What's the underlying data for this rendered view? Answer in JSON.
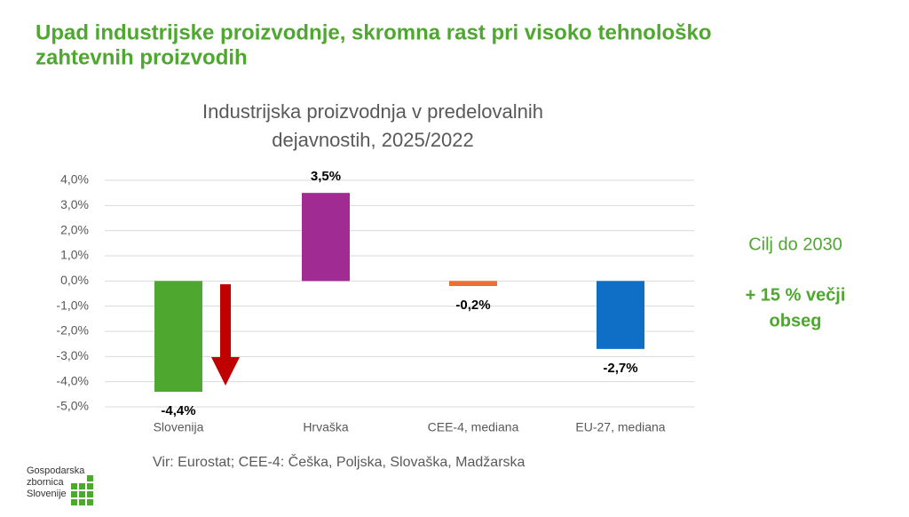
{
  "slide": {
    "title": [
      "Upad industrijske proizvodnje, skromna rast pri visoko tehnološko",
      "zahtevnih proizvodih"
    ],
    "goal": {
      "heading": "Cilj do 2030",
      "text": [
        "+ 15 % večji",
        "obseg"
      ]
    },
    "source": "Vir: Eurostat; CEE-4: Češka,  Poljska, Slovaška, Madžarska",
    "logo": [
      "Gospodarska",
      "zbornica",
      "Slovenije"
    ]
  },
  "chart_data": {
    "type": "bar",
    "title": [
      "Industrijska proizvodnja v predelovalnih",
      "dejavnostih, 2025/2022"
    ],
    "categories": [
      "Slovenija",
      "Hrvaška",
      "CEE-4, mediana",
      "EU-27, mediana"
    ],
    "values": [
      -4.4,
      3.5,
      -0.2,
      -2.7
    ],
    "value_labels": [
      "-4,4%",
      "3,5%",
      "-0,2%",
      "-2,7%"
    ],
    "colors": [
      "#4ea72e",
      "#a02b93",
      "#e97132",
      "#0f6fc6"
    ],
    "ylim": [
      -5,
      4
    ],
    "yticks": [
      {
        "value": -5,
        "label": "-5,0%"
      },
      {
        "value": -4,
        "label": "-4,0%"
      },
      {
        "value": -3,
        "label": "-3,0%"
      },
      {
        "value": -2,
        "label": "-2,0%"
      },
      {
        "value": -1,
        "label": "-1,0%"
      },
      {
        "value": 0,
        "label": "0,0%"
      },
      {
        "value": 1,
        "label": "1,0%"
      },
      {
        "value": 2,
        "label": "2,0%"
      },
      {
        "value": 3,
        "label": "3,0%"
      },
      {
        "value": 4,
        "label": "4,0%"
      }
    ],
    "grid": true
  }
}
